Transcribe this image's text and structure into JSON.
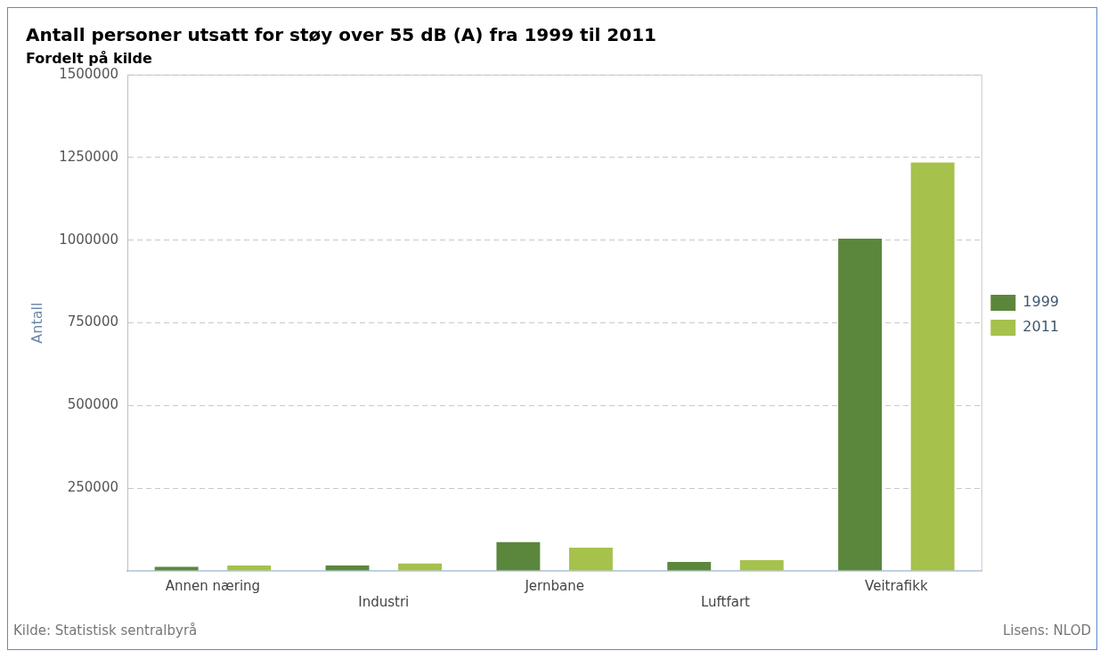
{
  "chart_data": {
    "type": "bar",
    "title": "Antall personer utsatt for støy over 55 dB (A) fra 1999 til 2011",
    "subtitle": "Fordelt på kilde",
    "ylabel": "Antall",
    "categories": [
      "Annen næring",
      "Industri",
      "Jernbane",
      "Luftfart",
      "Veitrafikk"
    ],
    "series": [
      {
        "name": "1999",
        "color": "#5b873d",
        "values": [
          12000,
          16000,
          87000,
          27000,
          1005000
        ]
      },
      {
        "name": "2011",
        "color": "#a6c14c",
        "values": [
          16000,
          22000,
          70000,
          32000,
          1235000
        ]
      }
    ],
    "ylim": [
      0,
      1500000
    ],
    "yticks": [
      {
        "value": 0,
        "label": null
      },
      250000,
      500000,
      750000,
      1000000,
      1250000,
      1500000
    ],
    "grid": "y",
    "legend": "right",
    "annotations": [
      "Kilde: Statistisk sentralbyrå",
      "Lisens: NLOD"
    ]
  }
}
